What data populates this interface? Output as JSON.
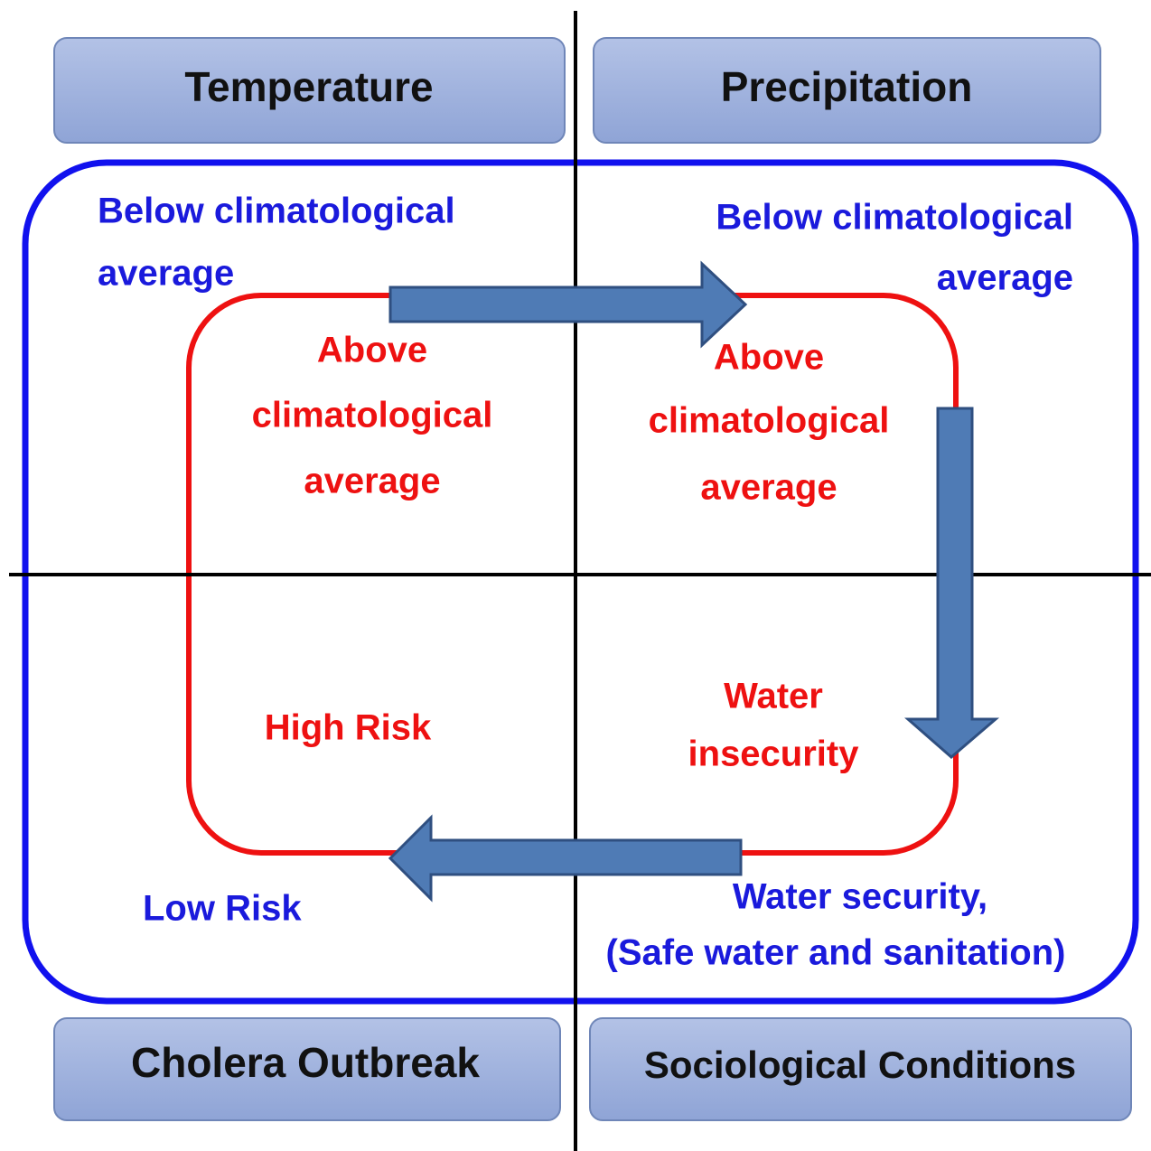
{
  "headers": [
    "Temperature",
    "Precipitation",
    "Cholera Outbreak",
    "Sociological Conditions"
  ],
  "labels": {
    "temp_below": [
      "Below climatological",
      "average"
    ],
    "precip_below": [
      "Below climatological",
      "average"
    ],
    "temp_above": [
      "Above",
      "climatological",
      "average"
    ],
    "precip_above": [
      "Above",
      "climatological",
      "average"
    ],
    "high_risk": [
      "High Risk"
    ],
    "water_insecurity": [
      "Water",
      "insecurity"
    ],
    "low_risk": [
      "Low Risk"
    ],
    "water_security": [
      "Water security,",
      "(Safe water and sanitation)"
    ]
  }
}
